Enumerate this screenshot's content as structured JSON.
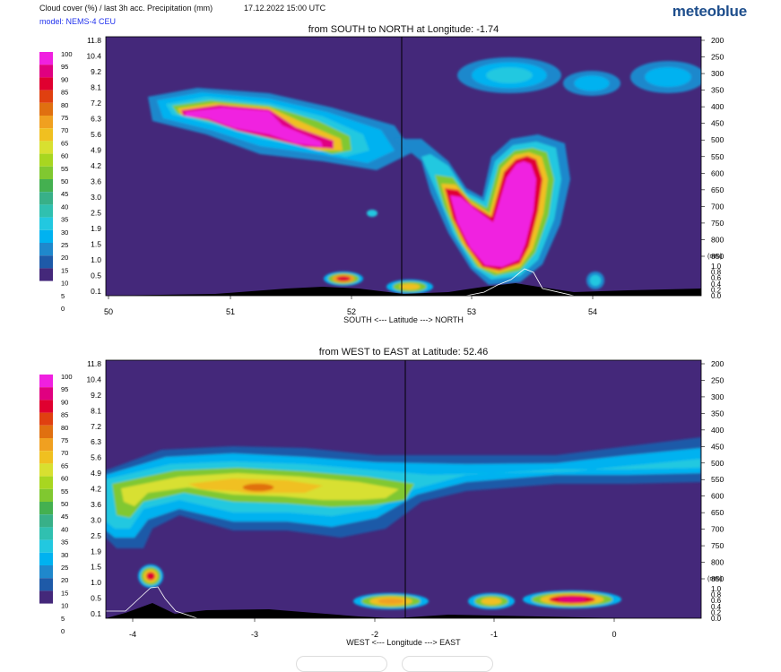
{
  "header": {
    "title": "Cloud cover (%) / last 3h acc. Precipitation (mm)",
    "date": "17.12.2022  15:00 UTC",
    "model": "model: NEMS-4 CEU",
    "brand": "meteoblue"
  },
  "colors": {
    "background": "#44287a",
    "terrain": "#000000",
    "legend": [
      "#44287a",
      "#1e5aa8",
      "#1f88cc",
      "#00b2f0",
      "#22c8e0",
      "#30c0b0",
      "#38b088",
      "#44b050",
      "#80c830",
      "#a8d620",
      "#d8e030",
      "#f0c020",
      "#f0a020",
      "#e07010",
      "#e04010",
      "#e00030",
      "#e00080",
      "#f020e0"
    ]
  },
  "legend_labels": [
    "100",
    "95",
    "90",
    "85",
    "80",
    "75",
    "70",
    "65",
    "60",
    "55",
    "50",
    "45",
    "40",
    "35",
    "30",
    "25",
    "20",
    "15",
    "10",
    "5",
    "0"
  ],
  "chart_data": [
    {
      "type": "heatmap",
      "title": "from SOUTH to NORTH at Longitude:  -1.74",
      "xlabel": "SOUTH <---  Latitude  ---> NORTH",
      "x_ticks": [
        "50",
        "51",
        "52",
        "53",
        "54"
      ],
      "xlim": [
        50,
        54.95
      ],
      "marker_x": 52.46,
      "y_left_ticks": [
        "11.8",
        "10.4",
        "9.2",
        "8.1",
        "7.2",
        "6.3",
        "5.6",
        "4.9",
        "4.2",
        "3.6",
        "3.0",
        "2.5",
        "1.9",
        "1.5",
        "1.0",
        "0.5",
        "0.1"
      ],
      "y_right_ticks": [
        "200",
        "250",
        "300",
        "350",
        "400",
        "450",
        "500",
        "550",
        "600",
        "650",
        "700",
        "750",
        "800",
        "850"
      ],
      "precip_ticks": [
        "1.0",
        "0.8",
        "0.6",
        "0.4",
        "0.2",
        "0.0"
      ],
      "precip_unit": "(mm)",
      "cloud_features": [
        {
          "name": "upper cloud band",
          "x_range": [
            50.3,
            51.9
          ],
          "height_km": [
            4.9,
            7.2
          ],
          "max_cover": 100
        },
        {
          "name": "frontal cloud",
          "x_range": [
            52.6,
            53.6
          ],
          "height_km": [
            0.5,
            5.0
          ],
          "max_cover": 100
        },
        {
          "name": "high thin cloud",
          "x_range": [
            53.2,
            54.9
          ],
          "height_km": [
            8.1,
            10.4
          ],
          "max_cover": 30
        }
      ]
    },
    {
      "type": "heatmap",
      "title": "from WEST to EAST at Latitude:  52.46",
      "xlabel": "WEST <---  Longitude  ---> EAST",
      "x_ticks": [
        "-4",
        "-3",
        "-2",
        "-1",
        "0"
      ],
      "xlim": [
        -4.25,
        0.74
      ],
      "marker_x": -1.74,
      "y_left_ticks": [
        "11.8",
        "10.4",
        "9.2",
        "8.1",
        "7.2",
        "6.3",
        "5.6",
        "4.9",
        "4.2",
        "3.6",
        "3.0",
        "2.5",
        "1.9",
        "1.5",
        "1.0",
        "0.5",
        "0.1"
      ],
      "y_right_ticks": [
        "200",
        "250",
        "300",
        "350",
        "400",
        "450",
        "500",
        "550",
        "600",
        "650",
        "700",
        "750",
        "800",
        "850"
      ],
      "precip_ticks": [
        "1.0",
        "0.8",
        "0.6",
        "0.4",
        "0.2",
        "0.0"
      ],
      "precip_unit": "(mm)",
      "cloud_features": [
        {
          "name": "mid cloud layer",
          "x_range": [
            -4.25,
            0.74
          ],
          "height_km": [
            3.0,
            6.3
          ],
          "max_cover": 75
        },
        {
          "name": "low cloud patches",
          "x_range": [
            -2.3,
            -0.1
          ],
          "height_km": [
            0.3,
            0.7
          ],
          "max_cover": 90
        }
      ]
    }
  ]
}
